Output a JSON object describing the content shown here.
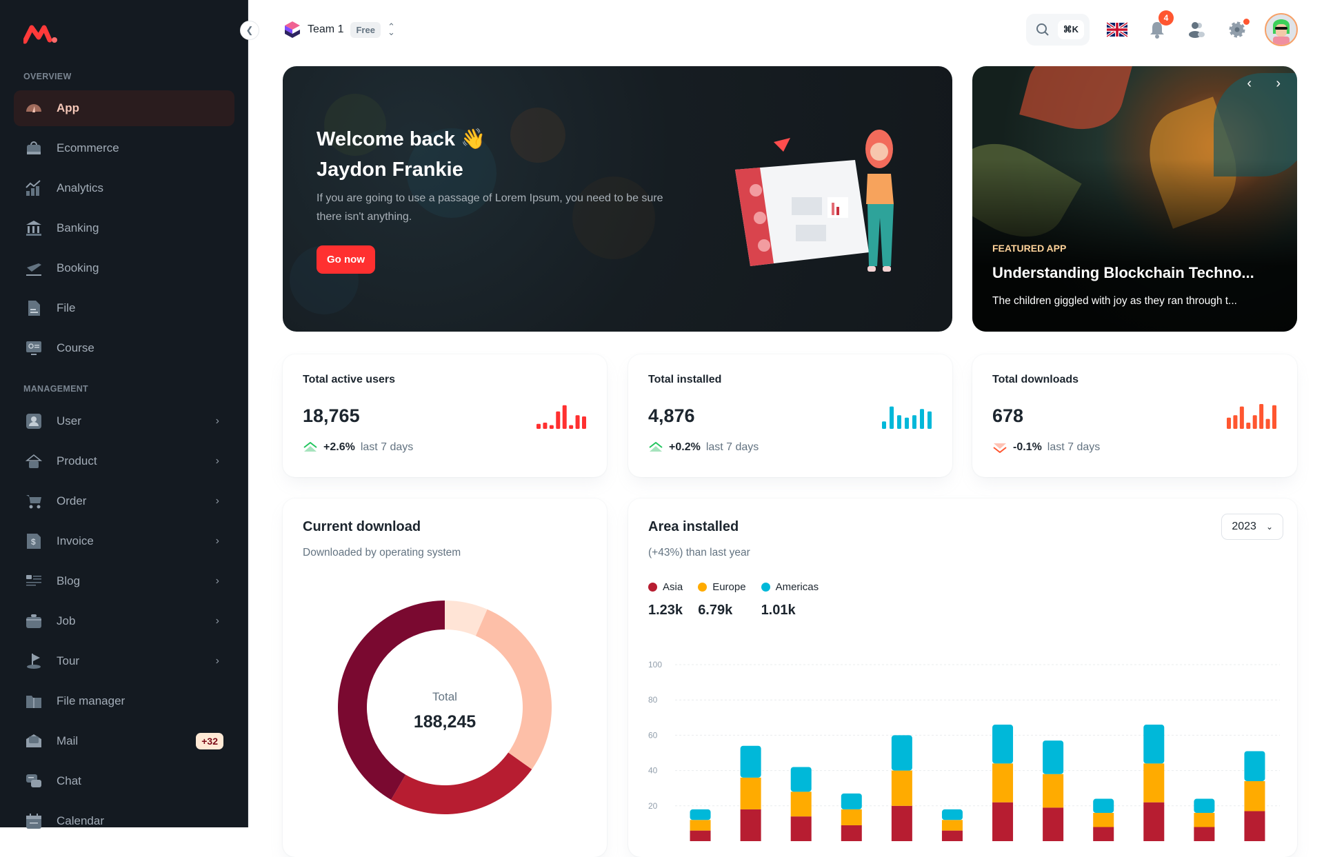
{
  "sidebar": {
    "overview_label": "OVERVIEW",
    "management_label": "MANAGEMENT",
    "overview": [
      {
        "label": "App",
        "icon": "dashboard-icon",
        "active": true
      },
      {
        "label": "Ecommerce",
        "icon": "shopping-bag-icon"
      },
      {
        "label": "Analytics",
        "icon": "analytics-icon"
      },
      {
        "label": "Banking",
        "icon": "bank-icon"
      },
      {
        "label": "Booking",
        "icon": "airplane-icon"
      },
      {
        "label": "File",
        "icon": "file-icon"
      },
      {
        "label": "Course",
        "icon": "course-icon"
      }
    ],
    "management": [
      {
        "label": "User",
        "icon": "user-icon",
        "chevron": true
      },
      {
        "label": "Product",
        "icon": "product-icon",
        "chevron": true
      },
      {
        "label": "Order",
        "icon": "cart-icon",
        "chevron": true
      },
      {
        "label": "Invoice",
        "icon": "invoice-icon",
        "chevron": true
      },
      {
        "label": "Blog",
        "icon": "blog-icon",
        "chevron": true
      },
      {
        "label": "Job",
        "icon": "briefcase-icon",
        "chevron": true
      },
      {
        "label": "Tour",
        "icon": "flag-icon",
        "chevron": true
      },
      {
        "label": "File manager",
        "icon": "folder-icon"
      },
      {
        "label": "Mail",
        "icon": "mail-icon",
        "badge": "+32"
      },
      {
        "label": "Chat",
        "icon": "chat-icon"
      },
      {
        "label": "Calendar",
        "icon": "calendar-icon"
      }
    ]
  },
  "header": {
    "team": "Team 1",
    "plan": "Free",
    "shortcut": "⌘K",
    "notifications": "4"
  },
  "hero": {
    "title_line1": "Welcome back 👋",
    "title_line2": "Jaydon Frankie",
    "text": "If you are going to use a passage of Lorem Ipsum, you need to be sure there isn't anything.",
    "button": "Go now"
  },
  "featured": {
    "tag": "FEATURED APP",
    "title": "Understanding Blockchain Techno...",
    "text": "The children giggled with joy as they ran through t..."
  },
  "stats": [
    {
      "title": "Total active users",
      "value": "18,765",
      "change": "+2.6%",
      "period": "last 7 days",
      "trend": "up",
      "color": "#ff3030",
      "bars": [
        20,
        25,
        15,
        70,
        95,
        15,
        55,
        50
      ]
    },
    {
      "title": "Total installed",
      "value": "4,876",
      "change": "+0.2%",
      "period": "last 7 days",
      "trend": "up",
      "color": "#00b8d9",
      "bars": [
        30,
        90,
        55,
        45,
        55,
        80,
        70
      ]
    },
    {
      "title": "Total downloads",
      "value": "678",
      "change": "-0.1%",
      "period": "last 7 days",
      "trend": "down",
      "color": "#ff5630",
      "bars": [
        45,
        55,
        90,
        25,
        55,
        100,
        40,
        95
      ]
    }
  ],
  "current_download": {
    "title": "Current download",
    "subtitle": "Downloaded by operating system",
    "total_label": "Total",
    "total": "188,245",
    "chart_data": {
      "type": "pie",
      "values": [
        12244,
        53345,
        44313,
        78343
      ],
      "colors": [
        "#ffe4d6",
        "#fdbfa8",
        "#b71d31",
        "#7a0930"
      ]
    }
  },
  "area_installed": {
    "title": "Area installed",
    "subtitle": "(+43%) than last year",
    "year": "2023",
    "legend": [
      {
        "name": "Asia",
        "value": "1.23k",
        "color": "#b71d31"
      },
      {
        "name": "Europe",
        "value": "6.79k",
        "color": "#ffab00"
      },
      {
        "name": "Americas",
        "value": "1.01k",
        "color": "#00b8d9"
      }
    ],
    "chart_data": {
      "type": "bar",
      "stacked": true,
      "yticks": [
        20,
        40,
        60,
        80,
        100
      ],
      "ylim": [
        0,
        100
      ],
      "grid": true,
      "series": [
        {
          "name": "Asia",
          "values": [
            6,
            18,
            14,
            9,
            20,
            6,
            22,
            19,
            8,
            22,
            8,
            17
          ]
        },
        {
          "name": "Europe",
          "values": [
            6,
            18,
            14,
            9,
            20,
            6,
            22,
            19,
            8,
            22,
            8,
            17
          ]
        },
        {
          "name": "Americas",
          "values": [
            6,
            18,
            14,
            9,
            20,
            6,
            22,
            19,
            8,
            22,
            8,
            17
          ]
        }
      ]
    }
  }
}
